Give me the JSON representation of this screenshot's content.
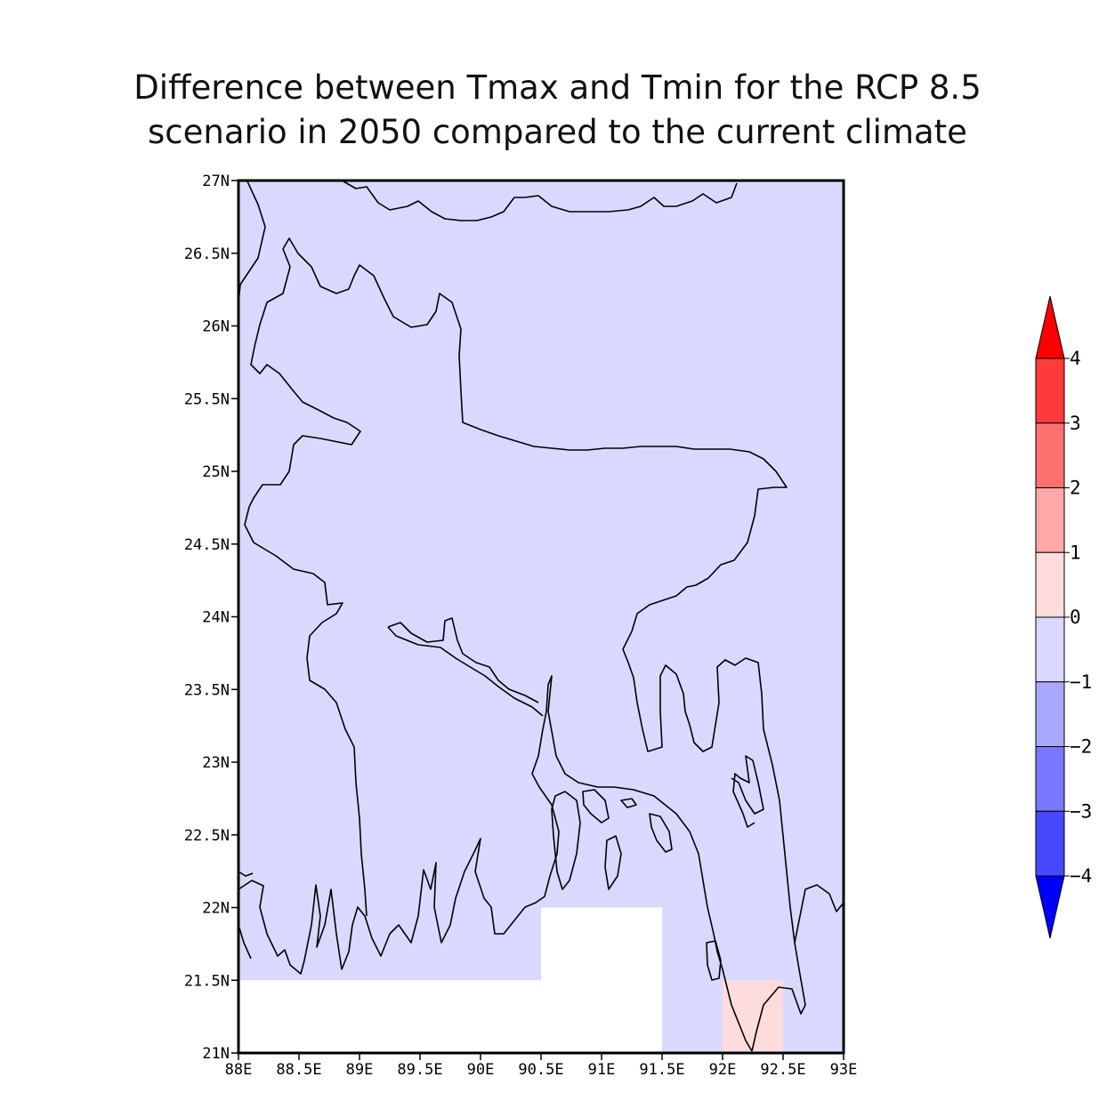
{
  "title": {
    "line1": "Difference between Tmax and Tmin for the RCP 8.5",
    "line2": "scenario in 2050 compared to the current climate"
  },
  "map": {
    "lon_range": [
      88,
      93
    ],
    "lat_range": [
      21,
      27
    ],
    "lon_ticks": [
      {
        "value": 88,
        "label": "88E"
      },
      {
        "value": 88.5,
        "label": "88.5E"
      },
      {
        "value": 89,
        "label": "89E"
      },
      {
        "value": 89.5,
        "label": "89.5E"
      },
      {
        "value": 90,
        "label": "90E"
      },
      {
        "value": 90.5,
        "label": "90.5E"
      },
      {
        "value": 91,
        "label": "91E"
      },
      {
        "value": 91.5,
        "label": "91.5E"
      },
      {
        "value": 92,
        "label": "92E"
      },
      {
        "value": 92.5,
        "label": "92.5E"
      },
      {
        "value": 93,
        "label": "93E"
      }
    ],
    "lat_ticks": [
      {
        "value": 21,
        "label": "21N"
      },
      {
        "value": 21.5,
        "label": "21.5N"
      },
      {
        "value": 22,
        "label": "22N"
      },
      {
        "value": 22.5,
        "label": "22.5N"
      },
      {
        "value": 23,
        "label": "23N"
      },
      {
        "value": 23.5,
        "label": "23.5N"
      },
      {
        "value": 24,
        "label": "24N"
      },
      {
        "value": 24.5,
        "label": "24.5N"
      },
      {
        "value": 25,
        "label": "25N"
      },
      {
        "value": 25.5,
        "label": "25.5N"
      },
      {
        "value": 26,
        "label": "26N"
      },
      {
        "value": 26.5,
        "label": "26.5N"
      },
      {
        "value": 27,
        "label": "27N"
      }
    ],
    "background_class_color": "#d9d9ff",
    "cells": [
      {
        "lon0": 88,
        "lon1": 90.5,
        "lat0": 21,
        "lat1": 21.5,
        "color": "#ffffff"
      },
      {
        "lon0": 90.5,
        "lon1": 91.5,
        "lat0": 21,
        "lat1": 22,
        "color": "#ffffff"
      },
      {
        "lon0": 92,
        "lon1": 92.5,
        "lat0": 21,
        "lat1": 21.5,
        "color": "#ffdcdc"
      }
    ]
  },
  "colorbar": {
    "levels": [
      {
        "from": -4,
        "to": -3,
        "color": "#2020ff"
      },
      {
        "from": -3,
        "to": -2,
        "color": "#4848ff"
      },
      {
        "from": -2,
        "to": -1,
        "color": "#7878ff"
      },
      {
        "from": -1,
        "to": 0,
        "color": "#a8a8ff"
      },
      {
        "from": 0,
        "to": 1,
        "color": "#d9d9ff"
      },
      {
        "from": 1,
        "to": 2,
        "color": "#ffdcdc"
      },
      {
        "from": 2,
        "to": 3,
        "color": "#ffa8a8"
      },
      {
        "from": 3,
        "to": 4,
        "color": "#ff7070"
      },
      {
        "from": 4,
        "to": 5,
        "color": "#ff3a3a"
      }
    ],
    "low_arrow_color": "#0000ff",
    "high_arrow_color": "#ff0000",
    "tick_labels": [
      "4",
      "3",
      "2",
      "1",
      "0",
      "−1",
      "−2",
      "−3",
      "−4"
    ]
  }
}
